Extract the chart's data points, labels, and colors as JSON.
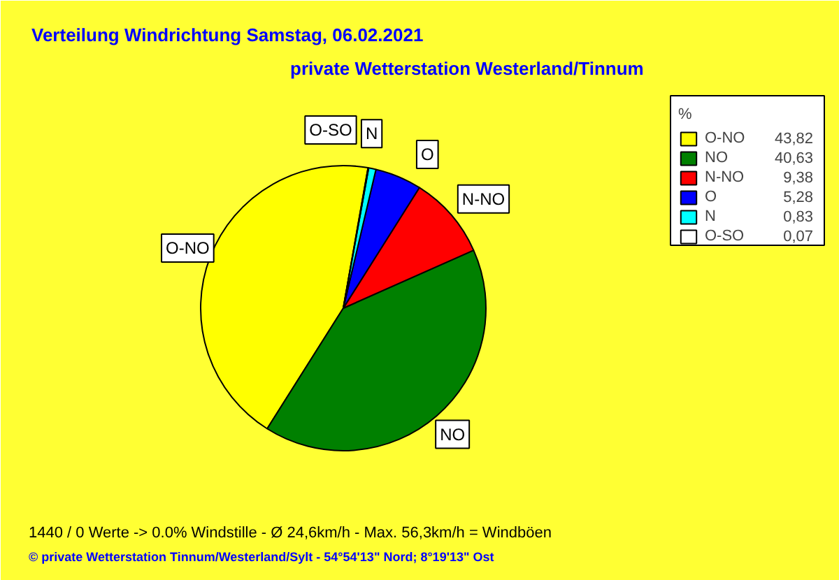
{
  "chart_data": {
    "type": "pie",
    "title": "Verteilung Windrichtung   Samstag, 06.02.2021",
    "subtitle": "private Wetterstation Westerland/Tinnum",
    "categories": [
      "O-NO",
      "NO",
      "N-NO",
      "O",
      "N",
      "O-SO"
    ],
    "values": [
      43.82,
      40.63,
      9.38,
      5.28,
      0.83,
      0.07
    ],
    "colors": [
      "#ffff00",
      "#008000",
      "#ff0000",
      "#0000ff",
      "#00ffff",
      "#ffffff"
    ],
    "value_labels": [
      "43,82",
      "40,63",
      "9,38",
      "5,28",
      "0,83",
      "0,07"
    ],
    "legend": "top right",
    "legend_title": "%",
    "annotations": [
      "1440 / 0 Werte  -> 0.0% Windstille   -   Ø 24,6km/h  -  Max. 56,3km/h = Windböen",
      "© private Wetterstation Tinnum/Westerland/Sylt  -  54°54'13\" Nord; 8°19'13\" Ost"
    ]
  }
}
